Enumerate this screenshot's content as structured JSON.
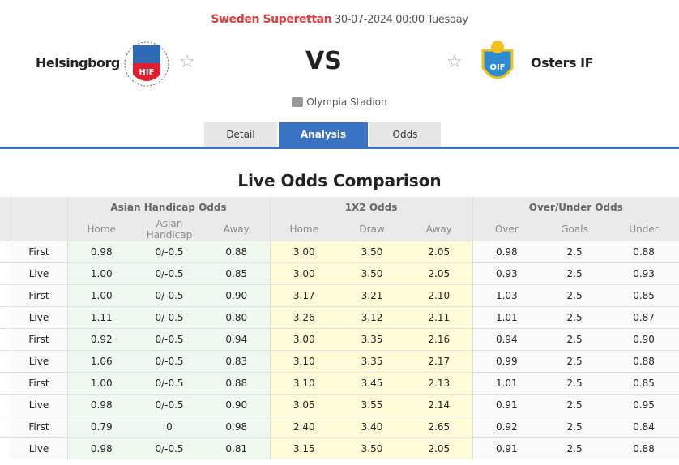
{
  "match": {
    "league": "Sweden Superettan",
    "datetime": "30-07-2024 00:00 Tuesday",
    "home_team": "Helsingborg",
    "away_team": "Osters IF",
    "vs": "VS",
    "venue": "Olympia Stadion",
    "home_logo_text": "HIF",
    "away_logo_text": "OIF"
  },
  "tabs": [
    {
      "label": "Detail",
      "active": false
    },
    {
      "label": "Analysis",
      "active": true
    },
    {
      "label": "Odds",
      "active": false
    }
  ],
  "colors": {
    "accent": "#3a73c4",
    "league": "#e03c3c"
  },
  "odds": {
    "title": "Live Odds Comparison",
    "groups": [
      "Asian Handicap Odds",
      "1X2 Odds",
      "Over/Under Odds"
    ],
    "columns": [
      "Home",
      "Asian Handicap",
      "Away",
      "Home",
      "Draw",
      "Away",
      "Over",
      "Goals",
      "Under"
    ],
    "rows": [
      [
        "First",
        "0.98",
        "0/-0.5",
        "0.88",
        "3.00",
        "3.50",
        "2.05",
        "0.98",
        "2.5",
        "0.88"
      ],
      [
        "Live",
        "1.00",
        "0/-0.5",
        "0.85",
        "3.00",
        "3.50",
        "2.05",
        "0.93",
        "2.5",
        "0.93"
      ],
      [
        "First",
        "1.00",
        "0/-0.5",
        "0.90",
        "3.17",
        "3.21",
        "2.10",
        "1.03",
        "2.5",
        "0.85"
      ],
      [
        "Live",
        "1.11",
        "0/-0.5",
        "0.80",
        "3.26",
        "3.12",
        "2.11",
        "1.01",
        "2.5",
        "0.87"
      ],
      [
        "First",
        "0.92",
        "0/-0.5",
        "0.94",
        "3.00",
        "3.35",
        "2.16",
        "0.94",
        "2.5",
        "0.90"
      ],
      [
        "Live",
        "1.06",
        "0/-0.5",
        "0.83",
        "3.10",
        "3.35",
        "2.17",
        "0.99",
        "2.5",
        "0.88"
      ],
      [
        "First",
        "1.00",
        "0/-0.5",
        "0.88",
        "3.10",
        "3.45",
        "2.13",
        "1.01",
        "2.5",
        "0.85"
      ],
      [
        "Live",
        "0.98",
        "0/-0.5",
        "0.90",
        "3.05",
        "3.55",
        "2.14",
        "0.91",
        "2.5",
        "0.95"
      ],
      [
        "First",
        "0.79",
        "0",
        "0.98",
        "2.40",
        "3.40",
        "2.65",
        "0.92",
        "2.5",
        "0.84"
      ],
      [
        "Live",
        "0.98",
        "0/-0.5",
        "0.81",
        "3.15",
        "3.50",
        "2.05",
        "0.91",
        "2.5",
        "0.88"
      ]
    ]
  }
}
